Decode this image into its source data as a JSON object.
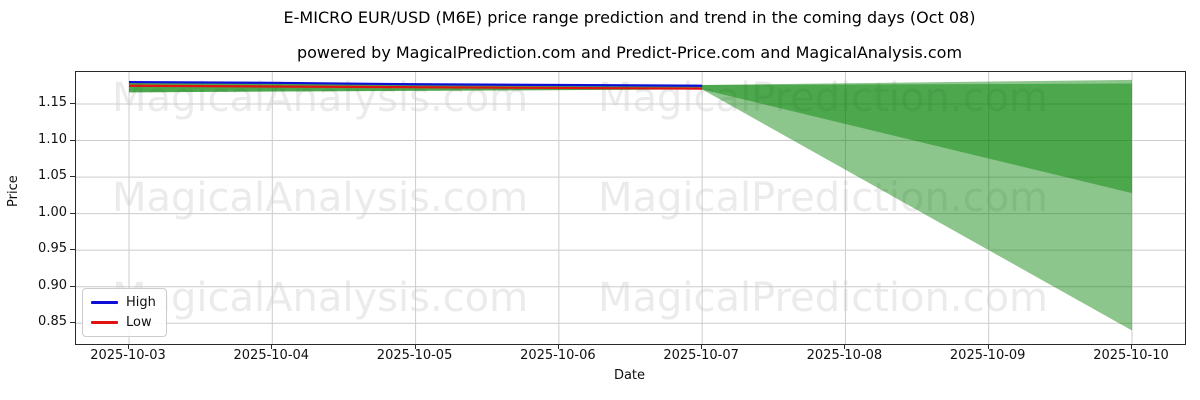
{
  "figure": {
    "title": "E-MICRO EUR/USD (M6E) price range prediction and trend in the coming days (Oct 08)",
    "subtitle": "powered by MagicalPrediction.com and Predict-Price.com and MagicalAnalysis.com"
  },
  "watermarks": {
    "left_text": "MagicalAnalysis.com",
    "right_text": "MagicalPrediction.com"
  },
  "legend": {
    "items": [
      {
        "label": "High",
        "color": "#0d0dd6"
      },
      {
        "label": "Low",
        "color": "#e01212"
      }
    ]
  },
  "colors": {
    "band_green": "#008000",
    "grid": "#cccccc",
    "high_line": "#0d0dd6",
    "low_line": "#e01212"
  },
  "chart_data": {
    "type": "line",
    "title": "E-MICRO EUR/USD (M6E) price range prediction and trend in the coming days (Oct 08)",
    "xlabel": "Date",
    "ylabel": "Price",
    "x_ticks": [
      "2025-10-03",
      "2025-10-04",
      "2025-10-05",
      "2025-10-06",
      "2025-10-07",
      "2025-10-08",
      "2025-10-09",
      "2025-10-10"
    ],
    "y_ticks": [
      "0.85",
      "0.90",
      "0.95",
      "1.00",
      "1.05",
      "1.10",
      "1.15"
    ],
    "xlim": [
      -0.37,
      7.37
    ],
    "ylim": [
      0.8216,
      1.1938
    ],
    "grid": true,
    "legend_position": "lower left",
    "series": [
      {
        "name": "High",
        "color": "#0d0dd6",
        "x": [
          0,
          1,
          2,
          3,
          4
        ],
        "values": [
          1.18,
          1.179,
          1.177,
          1.176,
          1.175
        ]
      },
      {
        "name": "Low",
        "color": "#e01212",
        "x": [
          0,
          1,
          2,
          3,
          4
        ],
        "values": [
          1.175,
          1.174,
          1.173,
          1.172,
          1.171
        ]
      }
    ],
    "bands": [
      {
        "name": "predicted-range-outer",
        "color": "#008000",
        "opacity": 0.45,
        "x": [
          0,
          4,
          7
        ],
        "top": [
          1.18,
          1.176,
          1.183
        ],
        "bottom": [
          1.166,
          1.17,
          0.84
        ]
      },
      {
        "name": "predicted-range-inner",
        "color": "#008000",
        "opacity": 0.45,
        "x": [
          0,
          4,
          7
        ],
        "top": [
          1.18,
          1.176,
          1.178
        ],
        "bottom": [
          1.166,
          1.17,
          1.028
        ]
      }
    ]
  }
}
